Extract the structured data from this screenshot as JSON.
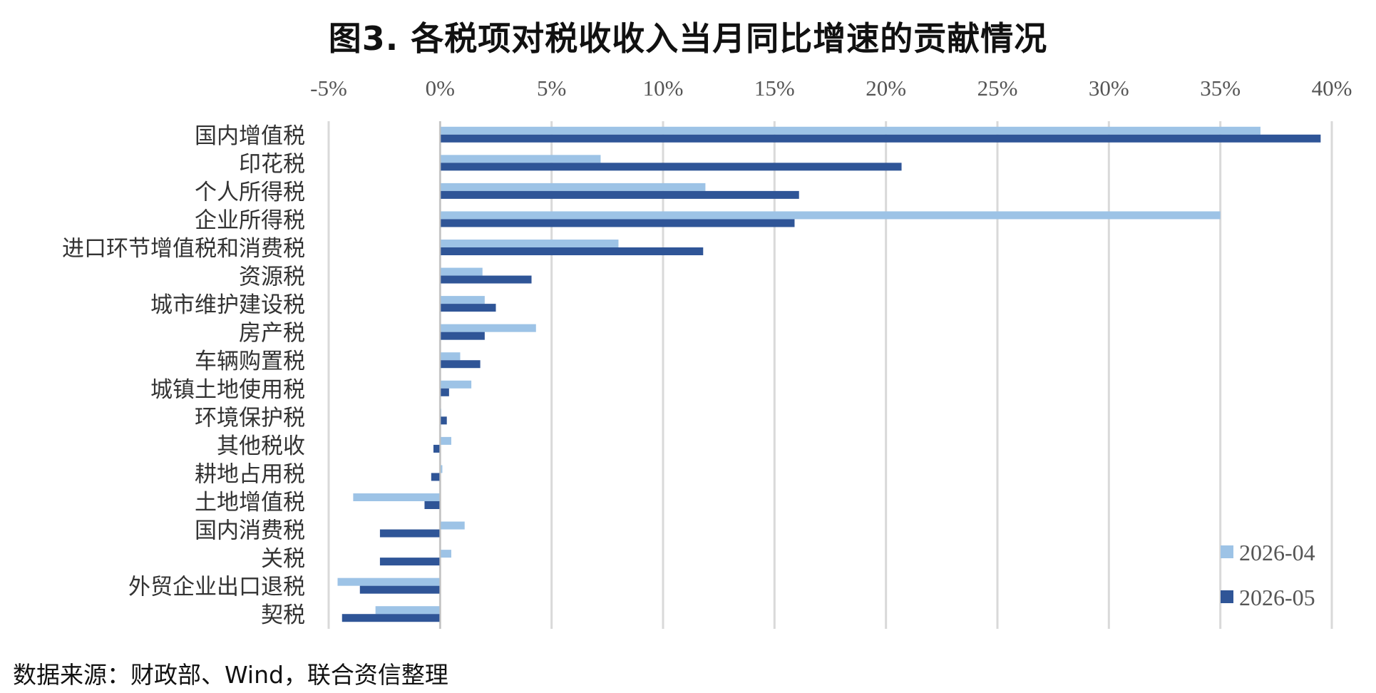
{
  "chart_data": {
    "type": "bar",
    "orientation": "horizontal",
    "title": "图3. 各税项对税收收入当月同比增速的贡献情况",
    "xlim": [
      -5,
      40
    ],
    "x_ticks": [
      "-5%",
      "0%",
      "5%",
      "10%",
      "15%",
      "20%",
      "25%",
      "30%",
      "35%",
      "40%"
    ],
    "x_tick_values": [
      -5,
      0,
      5,
      10,
      15,
      20,
      25,
      30,
      35,
      40
    ],
    "grid": "vertical",
    "legend_position": "bottom-right",
    "categories": [
      "国内增值税",
      "印花税",
      "个人所得税",
      "企业所得税",
      "进口环节增值税和消费税",
      "资源税",
      "城市维护建设税",
      "房产税",
      "车辆购置税",
      "城镇土地使用税",
      "环境保护税",
      "其他税收",
      "耕地占用税",
      "土地增值税",
      "国内消费税",
      "关税",
      "外贸企业出口退税",
      "契税"
    ],
    "series": [
      {
        "name": "2026-04",
        "color": "#9dc3e6",
        "values": [
          36.8,
          7.2,
          11.9,
          35.0,
          8.0,
          1.9,
          2.0,
          4.3,
          0.9,
          1.4,
          0.05,
          0.5,
          0.1,
          -3.9,
          1.1,
          0.5,
          -4.6,
          -2.9
        ]
      },
      {
        "name": "2026-05",
        "color": "#2f5597",
        "values": [
          39.5,
          20.7,
          16.1,
          15.9,
          11.8,
          4.1,
          2.5,
          2.0,
          1.8,
          0.4,
          0.3,
          -0.3,
          -0.4,
          -0.7,
          -2.7,
          -2.7,
          -3.6,
          -4.4
        ]
      }
    ]
  },
  "footer": {
    "source": "数据来源：财政部、Wind，联合资信整理"
  }
}
